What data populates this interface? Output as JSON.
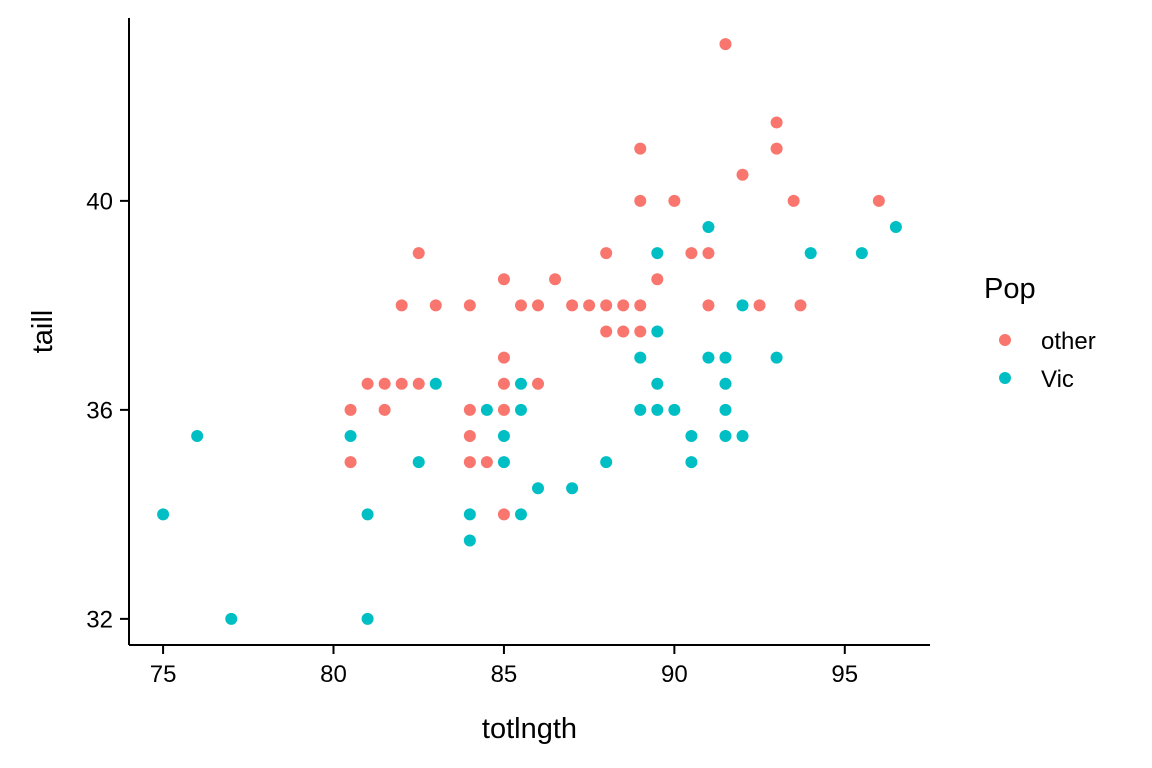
{
  "chart_data": {
    "type": "scatter",
    "title": "",
    "xlabel": "totlngth",
    "ylabel": "taill",
    "xlim": [
      74,
      97.5
    ],
    "ylim": [
      31.5,
      43.5
    ],
    "x_ticks": [
      75,
      80,
      85,
      90,
      95
    ],
    "y_ticks": [
      32,
      36,
      40
    ],
    "grid": false,
    "legend": {
      "title": "Pop",
      "placement": "right"
    },
    "series": [
      {
        "name": "other",
        "color": "#F8766D",
        "points": [
          [
            91.5,
            43
          ],
          [
            93,
            41.5
          ],
          [
            89,
            41
          ],
          [
            93,
            41
          ],
          [
            92,
            40.5
          ],
          [
            89,
            40
          ],
          [
            90,
            40
          ],
          [
            93.5,
            40
          ],
          [
            96,
            40
          ],
          [
            82.5,
            39
          ],
          [
            88,
            39
          ],
          [
            90.5,
            39
          ],
          [
            91,
            39
          ],
          [
            85,
            38.5
          ],
          [
            86.5,
            38.5
          ],
          [
            89.5,
            38.5
          ],
          [
            82,
            38
          ],
          [
            83,
            38
          ],
          [
            84,
            38
          ],
          [
            85.5,
            38
          ],
          [
            86,
            38
          ],
          [
            87,
            38
          ],
          [
            87.5,
            38
          ],
          [
            88,
            38
          ],
          [
            88.5,
            38
          ],
          [
            89,
            38
          ],
          [
            91,
            38
          ],
          [
            92.5,
            38
          ],
          [
            93.7,
            38
          ],
          [
            88,
            37.5
          ],
          [
            88.5,
            37.5
          ],
          [
            89,
            37.5
          ],
          [
            85,
            37
          ],
          [
            81,
            36.5
          ],
          [
            81.5,
            36.5
          ],
          [
            82,
            36.5
          ],
          [
            82.5,
            36.5
          ],
          [
            85,
            36.5
          ],
          [
            86,
            36.5
          ],
          [
            80.5,
            36
          ],
          [
            81.5,
            36
          ],
          [
            84,
            36
          ],
          [
            85,
            36
          ],
          [
            84,
            35.5
          ],
          [
            80.5,
            35
          ],
          [
            84,
            35
          ],
          [
            84.5,
            35
          ],
          [
            85,
            34
          ]
        ]
      },
      {
        "name": "Vic",
        "color": "#00BFC4",
        "points": [
          [
            96.5,
            39.5
          ],
          [
            91,
            39.5
          ],
          [
            89.5,
            39
          ],
          [
            94,
            39
          ],
          [
            95.5,
            39
          ],
          [
            92,
            38
          ],
          [
            89.5,
            37.5
          ],
          [
            89,
            37
          ],
          [
            91,
            37
          ],
          [
            91.5,
            37
          ],
          [
            93,
            37
          ],
          [
            83,
            36.5
          ],
          [
            85.5,
            36.5
          ],
          [
            89.5,
            36.5
          ],
          [
            91.5,
            36.5
          ],
          [
            84.5,
            36
          ],
          [
            85.5,
            36
          ],
          [
            89,
            36
          ],
          [
            89.5,
            36
          ],
          [
            90,
            36
          ],
          [
            91.5,
            36
          ],
          [
            76,
            35.5
          ],
          [
            80.5,
            35.5
          ],
          [
            85,
            35.5
          ],
          [
            90.5,
            35.5
          ],
          [
            91.5,
            35.5
          ],
          [
            92,
            35.5
          ],
          [
            82.5,
            35
          ],
          [
            85,
            35
          ],
          [
            88,
            35
          ],
          [
            90.5,
            35
          ],
          [
            86,
            34.5
          ],
          [
            87,
            34.5
          ],
          [
            75,
            34
          ],
          [
            81,
            34
          ],
          [
            84,
            34
          ],
          [
            85.5,
            34
          ],
          [
            84,
            33.5
          ],
          [
            77,
            32
          ],
          [
            81,
            32
          ]
        ]
      }
    ]
  }
}
